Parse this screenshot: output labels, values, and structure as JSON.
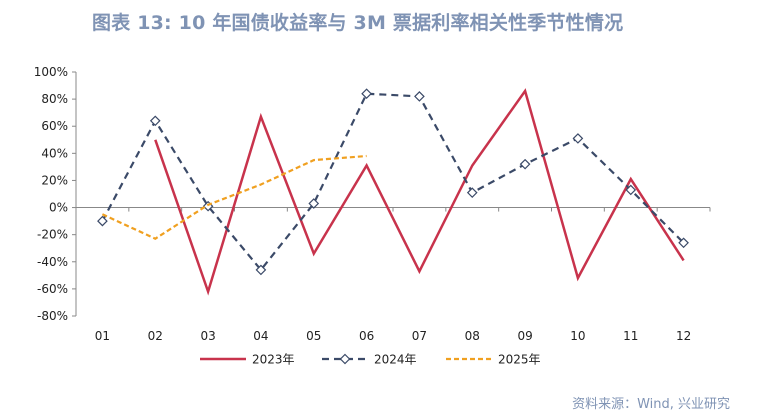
{
  "title": "图表 13: 10 年国债收益率与 3M 票据利率相关性季节性情况",
  "source": "资料来源：Wind, 兴业研究",
  "colors": {
    "title": "#7f93b4",
    "s2023": "#c8334c",
    "s2024": "#3b4a68",
    "s2025": "#f0a020"
  },
  "chart_data": {
    "type": "line",
    "categories": [
      "01",
      "02",
      "03",
      "04",
      "05",
      "06",
      "07",
      "08",
      "09",
      "10",
      "11",
      "12"
    ],
    "y_ticks": [
      "100%",
      "80%",
      "60%",
      "40%",
      "20%",
      "0%",
      "-20%",
      "-40%",
      "-60%",
      "-80%"
    ],
    "ylim": [
      -80,
      100
    ],
    "grid": false,
    "legend_position": "bottom",
    "series": [
      {
        "name": "2023年",
        "style": "solid",
        "values": [
          null,
          50,
          -62,
          67,
          -34,
          31,
          -47,
          31,
          86,
          -52,
          21,
          -39
        ]
      },
      {
        "name": "2024年",
        "style": "dashed-diamond",
        "values": [
          -10,
          64,
          1,
          -46,
          3,
          84,
          82,
          11,
          32,
          51,
          13,
          -26
        ]
      },
      {
        "name": "2025年",
        "style": "dashed",
        "values": [
          -5,
          -23,
          2,
          17,
          35,
          38,
          null,
          null,
          null,
          null,
          null,
          null
        ]
      }
    ]
  }
}
